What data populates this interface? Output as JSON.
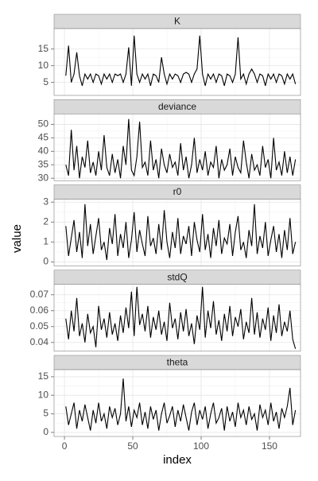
{
  "chart_data": [
    {
      "type": "line",
      "title": "K",
      "ylabel": "value",
      "color": "#000000",
      "grid": true,
      "xlim": [
        -7.6,
        172.7
      ],
      "xticks": [
        0,
        50,
        100,
        150
      ],
      "ylim": [
        1.1,
        21.1
      ],
      "yticks": [
        5,
        10,
        15
      ],
      "x": [
        1,
        3,
        5,
        7,
        9,
        11,
        13,
        15,
        17,
        19,
        21,
        23,
        25,
        27,
        29,
        31,
        33,
        35,
        37,
        39,
        41,
        43,
        45,
        47,
        49,
        51,
        53,
        55,
        57,
        59,
        61,
        63,
        65,
        67,
        69,
        71,
        73,
        75,
        77,
        79,
        81,
        83,
        85,
        87,
        89,
        91,
        93,
        95,
        97,
        99,
        101,
        103,
        105,
        107,
        109,
        111,
        113,
        115,
        117,
        119,
        121,
        123,
        125,
        127,
        129,
        131,
        133,
        135,
        137,
        139,
        141,
        143,
        145,
        147,
        149,
        151,
        153,
        155,
        157,
        159,
        161,
        163,
        165,
        167,
        169
      ],
      "values": [
        7,
        16,
        5,
        7.5,
        14,
        7,
        4,
        7.5,
        6,
        7.5,
        5,
        7.5,
        7,
        4.5,
        7.5,
        6,
        7.5,
        5,
        7.5,
        7,
        7.5,
        5,
        7.5,
        15.5,
        4,
        19,
        7.5,
        5,
        7.5,
        6,
        7.5,
        4,
        7.5,
        7,
        5,
        12.5,
        7.5,
        4.5,
        7.5,
        6,
        7.5,
        7,
        5,
        7.5,
        8,
        7.5,
        5,
        7.5,
        9,
        19,
        7.5,
        4,
        7.5,
        6,
        7.5,
        5,
        7.5,
        7,
        4,
        7.5,
        7,
        5,
        7.5,
        18.5,
        6,
        7.5,
        4.5,
        7.5,
        9,
        7.5,
        5,
        7.5,
        7,
        4,
        7.5,
        6,
        7.5,
        5,
        7.5,
        7,
        4.5,
        7.5,
        6,
        7.5,
        4.5
      ]
    },
    {
      "type": "line",
      "title": "deviance",
      "color": "#000000",
      "grid": true,
      "xlim": [
        -7.6,
        172.7
      ],
      "xticks": [
        0,
        50,
        100,
        150
      ],
      "ylim": [
        29.1,
        53.9
      ],
      "yticks": [
        30,
        35,
        40,
        45,
        50
      ],
      "x": [
        1,
        3,
        5,
        7,
        9,
        11,
        13,
        15,
        17,
        19,
        21,
        23,
        25,
        27,
        29,
        31,
        33,
        35,
        37,
        39,
        41,
        43,
        45,
        47,
        49,
        51,
        53,
        55,
        57,
        59,
        61,
        63,
        65,
        67,
        69,
        71,
        73,
        75,
        77,
        79,
        81,
        83,
        85,
        87,
        89,
        91,
        93,
        95,
        97,
        99,
        101,
        103,
        105,
        107,
        109,
        111,
        113,
        115,
        117,
        119,
        121,
        123,
        125,
        127,
        129,
        131,
        133,
        135,
        137,
        139,
        141,
        143,
        145,
        147,
        149,
        151,
        153,
        155,
        157,
        159,
        161,
        163,
        165,
        167,
        169
      ],
      "values": [
        35,
        31,
        48,
        33,
        42,
        30,
        38,
        34,
        44,
        32,
        36,
        31,
        40,
        33,
        46,
        34,
        31,
        39,
        32,
        37,
        30,
        42,
        35,
        52,
        33,
        31,
        38,
        51,
        34,
        36,
        31,
        44,
        33,
        37,
        30,
        41,
        35,
        32,
        39,
        34,
        36,
        31,
        43,
        33,
        38,
        30,
        35,
        45,
        32,
        37,
        33,
        40,
        31,
        36,
        34,
        42,
        30,
        37,
        33,
        35,
        41,
        31,
        38,
        34,
        32,
        44,
        36,
        30,
        39,
        33,
        35,
        31,
        42,
        34,
        37,
        30,
        45,
        33,
        36,
        31,
        40,
        32,
        38,
        31,
        37
      ]
    },
    {
      "type": "line",
      "title": "r0",
      "color": "#000000",
      "grid": true,
      "xlim": [
        -7.6,
        172.7
      ],
      "xticks": [
        0,
        50,
        100,
        150
      ],
      "ylim": [
        -0.2,
        3.15
      ],
      "yticks": [
        0,
        1,
        2,
        3
      ],
      "x": [
        1,
        3,
        5,
        7,
        9,
        11,
        13,
        15,
        17,
        19,
        21,
        23,
        25,
        27,
        29,
        31,
        33,
        35,
        37,
        39,
        41,
        43,
        45,
        47,
        49,
        51,
        53,
        55,
        57,
        59,
        61,
        63,
        65,
        67,
        69,
        71,
        73,
        75,
        77,
        79,
        81,
        83,
        85,
        87,
        89,
        91,
        93,
        95,
        97,
        99,
        101,
        103,
        105,
        107,
        109,
        111,
        113,
        115,
        117,
        119,
        121,
        123,
        125,
        127,
        129,
        131,
        133,
        135,
        137,
        139,
        141,
        143,
        145,
        147,
        149,
        151,
        153,
        155,
        157,
        159,
        161,
        163,
        165,
        167,
        169
      ],
      "values": [
        1.8,
        0.3,
        1.2,
        2.1,
        0.5,
        1.5,
        0.2,
        2.9,
        0.8,
        1.9,
        0.4,
        1.3,
        2.2,
        0.6,
        1.0,
        0.1,
        1.7,
        0.9,
        2.4,
        0.3,
        1.4,
        0.7,
        2.0,
        0.2,
        1.1,
        2.5,
        0.5,
        1.6,
        0.9,
        0.3,
        2.3,
        0.8,
        1.2,
        0.4,
        1.9,
        0.6,
        2.6,
        1.0,
        0.2,
        1.5,
        0.7,
        2.2,
        0.4,
        1.3,
        0.9,
        1.8,
        0.3,
        2.0,
        1.1,
        0.5,
        2.4,
        0.6,
        1.4,
        0.2,
        1.7,
        0.8,
        2.1,
        0.4,
        1.2,
        0.9,
        1.9,
        0.3,
        1.5,
        2.3,
        0.6,
        1.0,
        0.2,
        1.6,
        0.8,
        2.9,
        0.4,
        1.3,
        0.7,
        2.0,
        0.3,
        1.1,
        1.8,
        0.5,
        1.4,
        0.2,
        1.6,
        0.6,
        2.2,
        0.4,
        1.0
      ]
    },
    {
      "type": "line",
      "title": "stdQ",
      "color": "#000000",
      "grid": true,
      "xlim": [
        -7.6,
        172.7
      ],
      "xticks": [
        0,
        50,
        100,
        150
      ],
      "ylim": [
        0.0345,
        0.0765
      ],
      "yticks": [
        0.04,
        0.05,
        0.06,
        0.07
      ],
      "x": [
        1,
        3,
        5,
        7,
        9,
        11,
        13,
        15,
        17,
        19,
        21,
        23,
        25,
        27,
        29,
        31,
        33,
        35,
        37,
        39,
        41,
        43,
        45,
        47,
        49,
        51,
        53,
        55,
        57,
        59,
        61,
        63,
        65,
        67,
        69,
        71,
        73,
        75,
        77,
        79,
        81,
        83,
        85,
        87,
        89,
        91,
        93,
        95,
        97,
        99,
        101,
        103,
        105,
        107,
        109,
        111,
        113,
        115,
        117,
        119,
        121,
        123,
        125,
        127,
        129,
        131,
        133,
        135,
        137,
        139,
        141,
        143,
        145,
        147,
        149,
        151,
        153,
        155,
        157,
        159,
        161,
        163,
        165,
        167,
        169
      ],
      "values": [
        0.055,
        0.042,
        0.06,
        0.047,
        0.068,
        0.044,
        0.052,
        0.04,
        0.058,
        0.046,
        0.05,
        0.037,
        0.063,
        0.048,
        0.055,
        0.043,
        0.059,
        0.045,
        0.052,
        0.041,
        0.057,
        0.046,
        0.062,
        0.049,
        0.072,
        0.044,
        0.075,
        0.051,
        0.058,
        0.047,
        0.063,
        0.043,
        0.056,
        0.048,
        0.06,
        0.045,
        0.053,
        0.041,
        0.065,
        0.049,
        0.055,
        0.042,
        0.059,
        0.047,
        0.061,
        0.044,
        0.052,
        0.039,
        0.057,
        0.048,
        0.075,
        0.043,
        0.06,
        0.049,
        0.066,
        0.045,
        0.054,
        0.041,
        0.058,
        0.047,
        0.063,
        0.044,
        0.056,
        0.05,
        0.061,
        0.042,
        0.053,
        0.046,
        0.068,
        0.045,
        0.059,
        0.043,
        0.055,
        0.048,
        0.062,
        0.041,
        0.057,
        0.046,
        0.064,
        0.044,
        0.053,
        0.047,
        0.06,
        0.042,
        0.036
      ]
    },
    {
      "type": "line",
      "title": "theta",
      "xlabel": "index",
      "color": "#000000",
      "grid": true,
      "xlim": [
        -7.6,
        172.7
      ],
      "xticks": [
        0,
        50,
        100,
        150
      ],
      "ylim": [
        -1.1,
        16.9
      ],
      "yticks": [
        0,
        5,
        10,
        15
      ],
      "x": [
        1,
        3,
        5,
        7,
        9,
        11,
        13,
        15,
        17,
        19,
        21,
        23,
        25,
        27,
        29,
        31,
        33,
        35,
        37,
        39,
        41,
        43,
        45,
        47,
        49,
        51,
        53,
        55,
        57,
        59,
        61,
        63,
        65,
        67,
        69,
        71,
        73,
        75,
        77,
        79,
        81,
        83,
        85,
        87,
        89,
        91,
        93,
        95,
        97,
        99,
        101,
        103,
        105,
        107,
        109,
        111,
        113,
        115,
        117,
        119,
        121,
        123,
        125,
        127,
        129,
        131,
        133,
        135,
        137,
        139,
        141,
        143,
        145,
        147,
        149,
        151,
        153,
        155,
        157,
        159,
        161,
        163,
        165,
        167,
        169
      ],
      "values": [
        7,
        2,
        5,
        8,
        1,
        6,
        3,
        7.5,
        4,
        0.5,
        6,
        2.5,
        8,
        3,
        5,
        1,
        7,
        4,
        6.5,
        2,
        5,
        14.5,
        3,
        7,
        1.5,
        6,
        4,
        8,
        2,
        5.5,
        1,
        7,
        3.5,
        6,
        0.5,
        5,
        8,
        2.5,
        4.5,
        7,
        1.5,
        6,
        3,
        7.5,
        4,
        0.5,
        5.5,
        8,
        2,
        6,
        3.5,
        7,
        1,
        5,
        8,
        2.5,
        4,
        6.5,
        0.5,
        7,
        3,
        5.5,
        1.5,
        8,
        4,
        6,
        2,
        7,
        3.5,
        5,
        0.5,
        7.5,
        4,
        6,
        2,
        8,
        3,
        5.5,
        1,
        6.5,
        4,
        7,
        12,
        2,
        6
      ]
    }
  ]
}
